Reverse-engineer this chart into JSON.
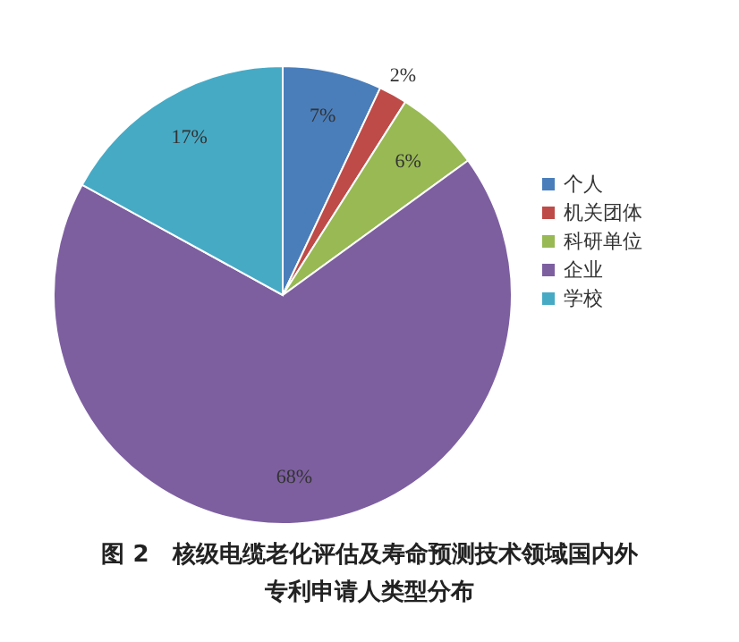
{
  "chart_data": {
    "type": "pie",
    "title": "图 2　核级电缆老化评估及寿命预测技术领域国内外专利申请人类型分布",
    "categories": [
      "个人",
      "机关团体",
      "科研单位",
      "企业",
      "学校"
    ],
    "values": [
      7,
      2,
      6,
      68,
      17
    ],
    "colors": [
      "#4a7ebb",
      "#be4b48",
      "#98b954",
      "#7d5fa0",
      "#46aac5"
    ],
    "value_labels": [
      "7%",
      "2%",
      "6%",
      "68%",
      "17%"
    ],
    "legend": "right"
  }
}
